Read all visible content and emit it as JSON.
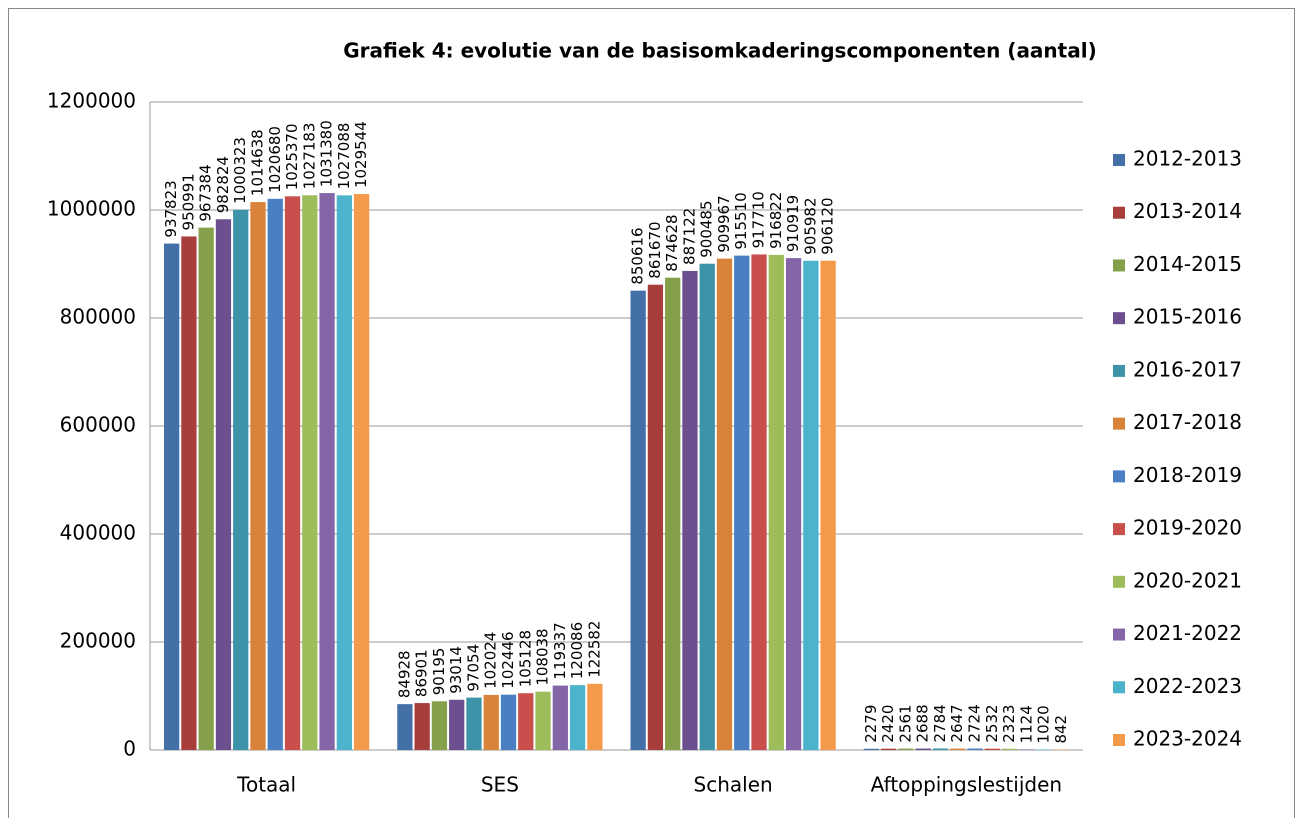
{
  "chart_data": {
    "type": "bar",
    "title": "Grafiek 4: evolutie van de basisomkaderingscomponenten (aantal)",
    "categories": [
      "Totaal",
      "SES",
      "Schalen",
      "Aftoppingslestijden"
    ],
    "series": [
      {
        "name": "2012-2013",
        "color": "#4470a8",
        "values": [
          937823,
          84928,
          850616,
          2279
        ]
      },
      {
        "name": "2013-2014",
        "color": "#a83e3b",
        "values": [
          950991,
          86901,
          861670,
          2420
        ]
      },
      {
        "name": "2014-2015",
        "color": "#84a04a",
        "values": [
          967384,
          90195,
          874628,
          2561
        ]
      },
      {
        "name": "2015-2016",
        "color": "#6b4f8e",
        "values": [
          982824,
          93014,
          887122,
          2688
        ]
      },
      {
        "name": "2016-2017",
        "color": "#3d93a8",
        "values": [
          1000323,
          97054,
          900485,
          2784
        ]
      },
      {
        "name": "2017-2018",
        "color": "#d9823a",
        "values": [
          1014638,
          102024,
          909967,
          2647
        ]
      },
      {
        "name": "2018-2019",
        "color": "#4a7fc4",
        "values": [
          1020680,
          102446,
          915510,
          2724
        ]
      },
      {
        "name": "2019-2020",
        "color": "#c84f4c",
        "values": [
          1025370,
          105128,
          917710,
          2532
        ]
      },
      {
        "name": "2020-2021",
        "color": "#9dbd5a",
        "values": [
          1027183,
          108038,
          916822,
          2323
        ]
      },
      {
        "name": "2021-2022",
        "color": "#8466a8",
        "values": [
          1031380,
          119337,
          910919,
          1124
        ]
      },
      {
        "name": "2022-2023",
        "color": "#4bb4cc",
        "values": [
          1027088,
          120086,
          905982,
          1020
        ]
      },
      {
        "name": "2023-2024",
        "color": "#f59a4a",
        "values": [
          1029544,
          122582,
          906120,
          842
        ]
      }
    ],
    "ylim": [
      0,
      1200000
    ],
    "yticks": [
      0,
      200000,
      400000,
      600000,
      800000,
      1000000,
      1200000
    ],
    "grid": true,
    "legend": "right"
  }
}
